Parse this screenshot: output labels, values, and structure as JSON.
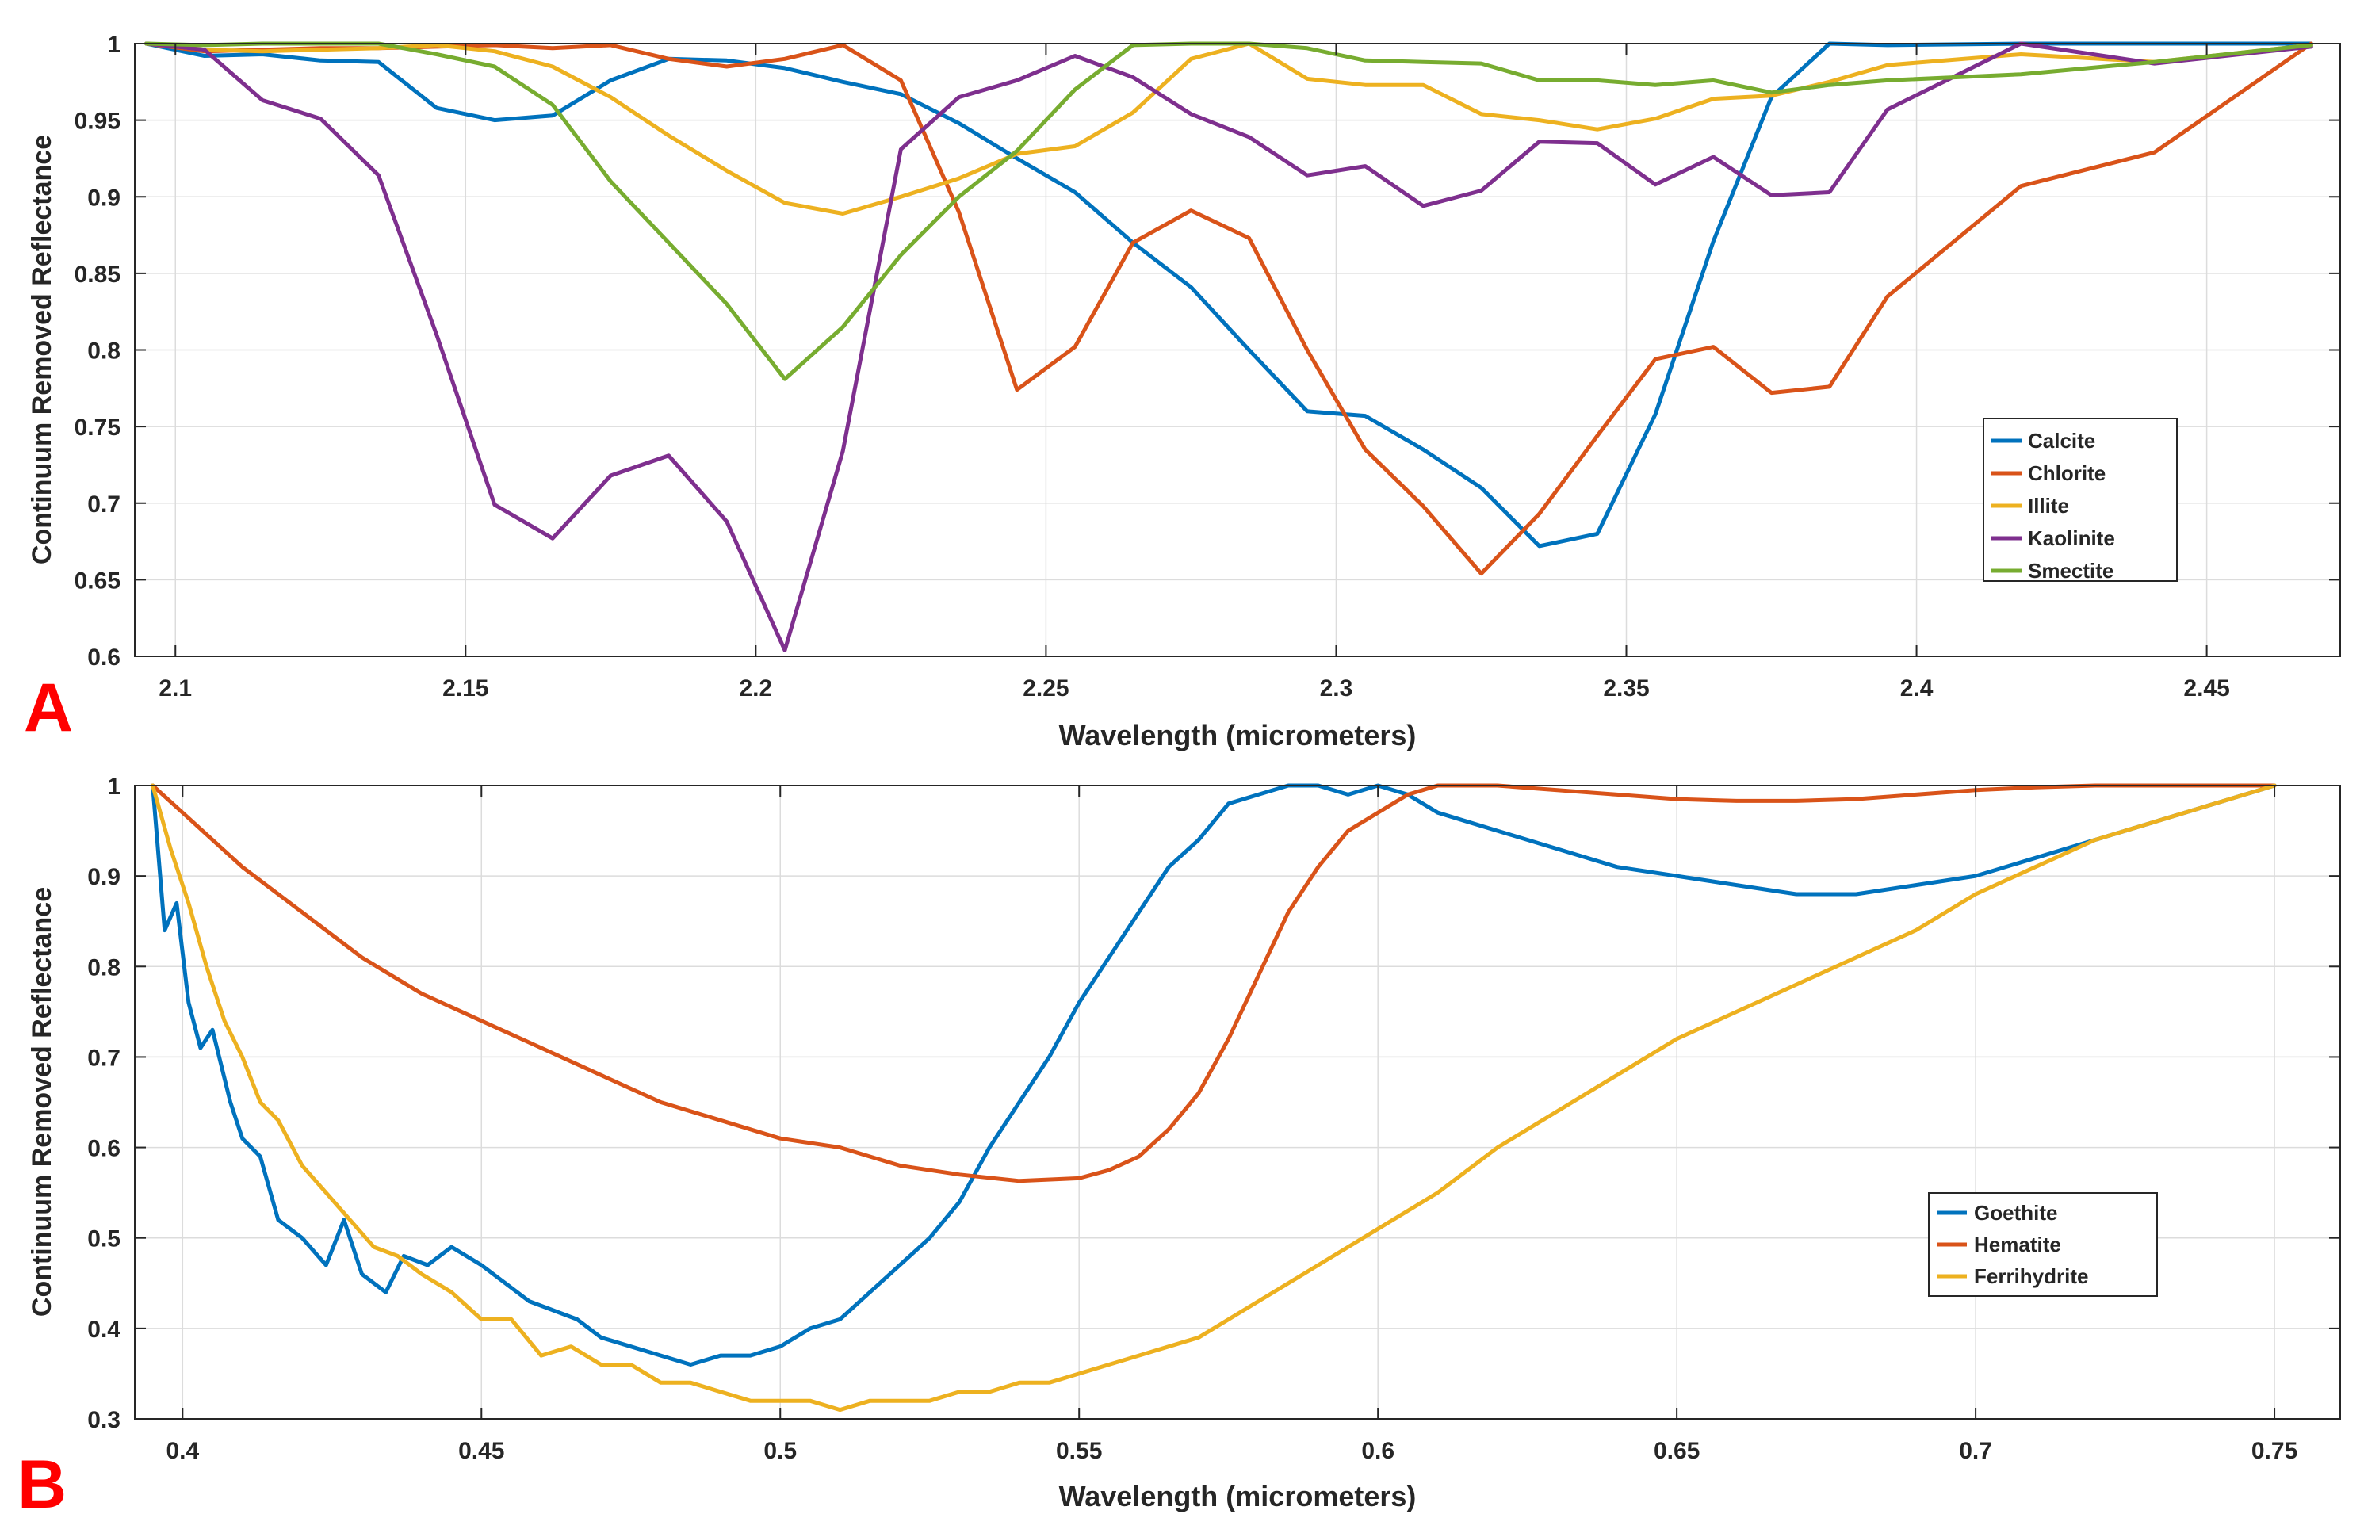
{
  "chart_data": [
    {
      "panel_label": "A",
      "type": "line",
      "title": "",
      "xlabel": "Wavelength (micrometers)",
      "ylabel": "Continuum Removed Reflectance",
      "xlim": [
        2.093,
        2.473
      ],
      "ylim": [
        0.6,
        1.0
      ],
      "xticks": [
        2.1,
        2.15,
        2.2,
        2.25,
        2.3,
        2.35,
        2.4,
        2.45
      ],
      "xtick_labels": [
        "2.1",
        "2.15",
        "2.2",
        "2.25",
        "2.3",
        "2.35",
        "2.4",
        "2.45"
      ],
      "yticks": [
        0.6,
        0.65,
        0.7,
        0.75,
        0.8,
        0.85,
        0.9,
        0.95,
        1.0
      ],
      "ytick_labels": [
        "0.6",
        "0.65",
        "0.7",
        "0.75",
        "0.8",
        "0.85",
        "0.9",
        "0.95",
        "1"
      ],
      "grid": true,
      "legend_position": "lower-right",
      "series": [
        {
          "name": "Calcite",
          "color": "#0072BD",
          "x": [
            2.095,
            2.105,
            2.115,
            2.125,
            2.135,
            2.145,
            2.155,
            2.165,
            2.175,
            2.185,
            2.195,
            2.205,
            2.215,
            2.225,
            2.235,
            2.245,
            2.255,
            2.265,
            2.275,
            2.285,
            2.295,
            2.305,
            2.315,
            2.325,
            2.335,
            2.345,
            2.355,
            2.365,
            2.375,
            2.385,
            2.395,
            2.418,
            2.441,
            2.468
          ],
          "y": [
            1.0,
            0.992,
            0.993,
            0.989,
            0.988,
            0.958,
            0.95,
            0.953,
            0.976,
            0.99,
            0.989,
            0.984,
            0.975,
            0.967,
            0.948,
            0.925,
            0.903,
            0.87,
            0.841,
            0.8,
            0.76,
            0.757,
            0.735,
            0.71,
            0.672,
            0.68,
            0.758,
            0.871,
            0.965,
            1.0,
            0.999,
            1.0,
            1.0,
            1.0
          ]
        },
        {
          "name": "Chlorite",
          "color": "#D95319",
          "x": [
            2.095,
            2.105,
            2.115,
            2.125,
            2.135,
            2.145,
            2.155,
            2.165,
            2.175,
            2.185,
            2.195,
            2.205,
            2.215,
            2.225,
            2.235,
            2.245,
            2.255,
            2.265,
            2.275,
            2.285,
            2.295,
            2.305,
            2.315,
            2.325,
            2.335,
            2.345,
            2.355,
            2.365,
            2.375,
            2.385,
            2.395,
            2.418,
            2.441,
            2.468
          ],
          "y": [
            1.0,
            0.995,
            0.996,
            0.997,
            0.997,
            0.998,
            0.999,
            0.997,
            0.999,
            0.99,
            0.985,
            0.99,
            0.999,
            0.976,
            0.89,
            0.774,
            0.802,
            0.87,
            0.891,
            0.873,
            0.8,
            0.735,
            0.698,
            0.654,
            0.693,
            0.744,
            0.794,
            0.802,
            0.772,
            0.776,
            0.835,
            0.907,
            0.929,
            1.0
          ]
        },
        {
          "name": "Illite",
          "color": "#EDB120",
          "x": [
            2.095,
            2.105,
            2.115,
            2.125,
            2.135,
            2.145,
            2.155,
            2.165,
            2.175,
            2.185,
            2.195,
            2.205,
            2.215,
            2.225,
            2.235,
            2.245,
            2.255,
            2.265,
            2.275,
            2.285,
            2.295,
            2.305,
            2.315,
            2.325,
            2.335,
            2.345,
            2.355,
            2.365,
            2.375,
            2.385,
            2.395,
            2.418,
            2.441,
            2.468
          ],
          "y": [
            1.0,
            0.996,
            0.995,
            0.996,
            0.997,
            0.999,
            0.995,
            0.985,
            0.965,
            0.94,
            0.917,
            0.896,
            0.889,
            0.9,
            0.912,
            0.928,
            0.933,
            0.955,
            0.99,
            1.0,
            0.977,
            0.973,
            0.973,
            0.954,
            0.95,
            0.944,
            0.951,
            0.964,
            0.966,
            0.975,
            0.986,
            0.993,
            0.988,
            0.999
          ]
        },
        {
          "name": "Kaolinite",
          "color": "#7E2F8E",
          "x": [
            2.095,
            2.105,
            2.115,
            2.125,
            2.135,
            2.145,
            2.155,
            2.165,
            2.175,
            2.185,
            2.195,
            2.205,
            2.215,
            2.225,
            2.235,
            2.245,
            2.255,
            2.265,
            2.275,
            2.285,
            2.295,
            2.305,
            2.315,
            2.325,
            2.335,
            2.345,
            2.355,
            2.365,
            2.375,
            2.385,
            2.395,
            2.418,
            2.441,
            2.468
          ],
          "y": [
            1.0,
            0.996,
            0.963,
            0.951,
            0.914,
            0.81,
            0.699,
            0.677,
            0.718,
            0.731,
            0.688,
            0.604,
            0.734,
            0.931,
            0.965,
            0.976,
            0.992,
            0.978,
            0.954,
            0.939,
            0.914,
            0.92,
            0.894,
            0.904,
            0.936,
            0.935,
            0.908,
            0.926,
            0.901,
            0.903,
            0.957,
            1.0,
            0.987,
            0.998
          ]
        },
        {
          "name": "Smectite",
          "color": "#77AC30",
          "x": [
            2.095,
            2.105,
            2.115,
            2.125,
            2.135,
            2.145,
            2.155,
            2.165,
            2.175,
            2.185,
            2.195,
            2.205,
            2.215,
            2.225,
            2.235,
            2.245,
            2.255,
            2.265,
            2.275,
            2.285,
            2.295,
            2.305,
            2.315,
            2.325,
            2.335,
            2.345,
            2.355,
            2.365,
            2.375,
            2.385,
            2.395,
            2.418,
            2.441,
            2.468
          ],
          "y": [
            1.0,
            0.999,
            1.0,
            1.0,
            1.0,
            0.993,
            0.985,
            0.96,
            0.91,
            0.87,
            0.83,
            0.781,
            0.815,
            0.862,
            0.9,
            0.93,
            0.97,
            0.999,
            1.0,
            1.0,
            0.997,
            0.989,
            0.988,
            0.987,
            0.976,
            0.976,
            0.973,
            0.976,
            0.968,
            0.973,
            0.976,
            0.98,
            0.988,
            0.999
          ]
        }
      ]
    },
    {
      "panel_label": "B",
      "type": "line",
      "title": "",
      "xlabel": "Wavelength (micrometers)",
      "ylabel": "Continuum Removed Reflectance",
      "xlim": [
        0.392,
        0.761
      ],
      "ylim": [
        0.3,
        1.0
      ],
      "xticks": [
        0.4,
        0.45,
        0.5,
        0.55,
        0.6,
        0.65,
        0.7,
        0.75
      ],
      "xtick_labels": [
        "0.4",
        "0.45",
        "0.5",
        "0.55",
        "0.6",
        "0.65",
        "0.7",
        "0.75"
      ],
      "yticks": [
        0.3,
        0.4,
        0.5,
        0.6,
        0.7,
        0.8,
        0.9,
        1.0
      ],
      "ytick_labels": [
        "0.3",
        "0.4",
        "0.5",
        "0.6",
        "0.7",
        "0.8",
        "0.9",
        "1"
      ],
      "grid": true,
      "legend_position": "center-right",
      "series": [
        {
          "name": "Goethite",
          "color": "#0072BD",
          "x": [
            0.395,
            0.397,
            0.399,
            0.401,
            0.403,
            0.405,
            0.408,
            0.41,
            0.413,
            0.416,
            0.42,
            0.424,
            0.427,
            0.43,
            0.434,
            0.437,
            0.441,
            0.445,
            0.45,
            0.454,
            0.458,
            0.462,
            0.466,
            0.47,
            0.475,
            0.48,
            0.485,
            0.49,
            0.495,
            0.5,
            0.505,
            0.51,
            0.515,
            0.52,
            0.525,
            0.53,
            0.535,
            0.54,
            0.545,
            0.55,
            0.555,
            0.56,
            0.565,
            0.57,
            0.575,
            0.58,
            0.585,
            0.59,
            0.595,
            0.6,
            0.605,
            0.61,
            0.615,
            0.62,
            0.63,
            0.64,
            0.65,
            0.66,
            0.67,
            0.68,
            0.69,
            0.7,
            0.71,
            0.72,
            0.73,
            0.74,
            0.75
          ],
          "y": [
            1.0,
            0.84,
            0.87,
            0.76,
            0.71,
            0.73,
            0.65,
            0.61,
            0.59,
            0.52,
            0.5,
            0.47,
            0.52,
            0.46,
            0.44,
            0.48,
            0.47,
            0.49,
            0.47,
            0.45,
            0.43,
            0.42,
            0.41,
            0.39,
            0.38,
            0.37,
            0.36,
            0.37,
            0.37,
            0.38,
            0.4,
            0.41,
            0.44,
            0.47,
            0.5,
            0.54,
            0.6,
            0.65,
            0.7,
            0.76,
            0.81,
            0.86,
            0.91,
            0.94,
            0.98,
            0.99,
            1.0,
            1.0,
            0.99,
            1.0,
            0.99,
            0.97,
            0.96,
            0.95,
            0.93,
            0.91,
            0.9,
            0.89,
            0.88,
            0.88,
            0.89,
            0.9,
            0.92,
            0.94,
            0.96,
            0.98,
            1.0
          ]
        },
        {
          "name": "Hematite",
          "color": "#D95319",
          "x": [
            0.395,
            0.4,
            0.41,
            0.42,
            0.43,
            0.44,
            0.45,
            0.46,
            0.47,
            0.48,
            0.49,
            0.5,
            0.51,
            0.52,
            0.53,
            0.54,
            0.55,
            0.555,
            0.56,
            0.565,
            0.57,
            0.575,
            0.58,
            0.585,
            0.59,
            0.595,
            0.6,
            0.605,
            0.61,
            0.62,
            0.63,
            0.64,
            0.65,
            0.66,
            0.67,
            0.68,
            0.69,
            0.7,
            0.71,
            0.72,
            0.73,
            0.74,
            0.75
          ],
          "y": [
            1.0,
            0.97,
            0.91,
            0.86,
            0.81,
            0.77,
            0.74,
            0.71,
            0.68,
            0.65,
            0.63,
            0.61,
            0.6,
            0.58,
            0.57,
            0.563,
            0.566,
            0.575,
            0.59,
            0.62,
            0.66,
            0.72,
            0.79,
            0.86,
            0.91,
            0.95,
            0.97,
            0.99,
            1.0,
            1.0,
            0.995,
            0.99,
            0.985,
            0.983,
            0.983,
            0.985,
            0.99,
            0.995,
            0.998,
            1.0,
            1.0,
            1.0,
            1.0
          ]
        },
        {
          "name": "Ferrihydrite",
          "color": "#EDB120",
          "x": [
            0.395,
            0.398,
            0.401,
            0.404,
            0.407,
            0.41,
            0.413,
            0.416,
            0.42,
            0.424,
            0.428,
            0.432,
            0.436,
            0.44,
            0.445,
            0.45,
            0.455,
            0.46,
            0.465,
            0.47,
            0.475,
            0.48,
            0.485,
            0.49,
            0.495,
            0.5,
            0.505,
            0.51,
            0.515,
            0.52,
            0.525,
            0.53,
            0.535,
            0.54,
            0.545,
            0.55,
            0.555,
            0.56,
            0.565,
            0.57,
            0.58,
            0.59,
            0.6,
            0.61,
            0.62,
            0.63,
            0.64,
            0.65,
            0.66,
            0.67,
            0.68,
            0.69,
            0.7,
            0.71,
            0.72,
            0.73,
            0.74,
            0.75
          ],
          "y": [
            1.0,
            0.93,
            0.87,
            0.8,
            0.74,
            0.7,
            0.65,
            0.63,
            0.58,
            0.55,
            0.52,
            0.49,
            0.48,
            0.46,
            0.44,
            0.41,
            0.41,
            0.37,
            0.38,
            0.36,
            0.36,
            0.34,
            0.34,
            0.33,
            0.32,
            0.32,
            0.32,
            0.31,
            0.32,
            0.32,
            0.32,
            0.33,
            0.33,
            0.34,
            0.34,
            0.35,
            0.36,
            0.37,
            0.38,
            0.39,
            0.43,
            0.47,
            0.51,
            0.55,
            0.6,
            0.64,
            0.68,
            0.72,
            0.75,
            0.78,
            0.81,
            0.84,
            0.88,
            0.91,
            0.94,
            0.96,
            0.98,
            1.0
          ]
        }
      ]
    }
  ]
}
